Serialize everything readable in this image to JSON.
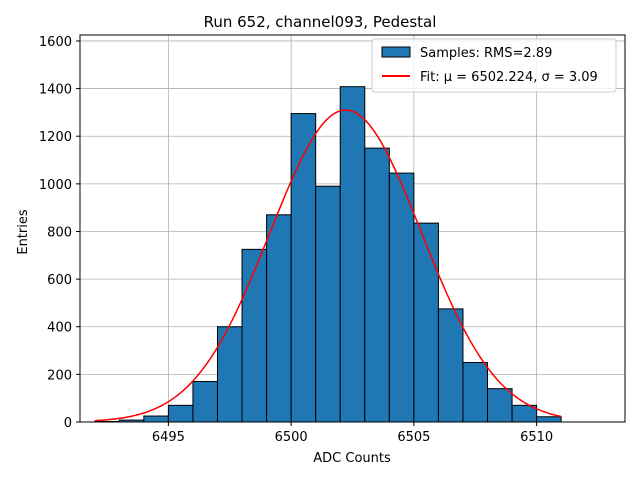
{
  "chart_data": {
    "type": "bar",
    "title": "Run 652, channel093, Pedestal",
    "xlabel": "ADC Counts",
    "ylabel": "Entries",
    "xlim": [
      6491.4,
      6513.6
    ],
    "ylim": [
      0,
      1625
    ],
    "xticks": [
      6495,
      6500,
      6505,
      6510
    ],
    "yticks": [
      0,
      200,
      400,
      600,
      800,
      1000,
      1200,
      1400,
      1600
    ],
    "grid": true,
    "legend_position": "top-right",
    "histogram": {
      "name": "Samples: RMS=2.89",
      "color": "#1f77b4",
      "bin_edges": [
        6492,
        6493,
        6494,
        6495,
        6496,
        6497,
        6498,
        6499,
        6500,
        6501,
        6502,
        6503,
        6504,
        6505,
        6506,
        6507,
        6508,
        6509,
        6510,
        6511
      ],
      "counts": [
        2,
        8,
        25,
        70,
        170,
        400,
        725,
        870,
        1295,
        990,
        1408,
        1150,
        1045,
        835,
        475,
        250,
        140,
        70,
        22
      ]
    },
    "fit": {
      "name": "Fit: μ = 6502.224, σ = 3.09",
      "color": "#ff0000",
      "mu": 6502.224,
      "sigma": 3.09,
      "amplitude": 1310,
      "x_range": [
        6492,
        6511
      ]
    }
  }
}
